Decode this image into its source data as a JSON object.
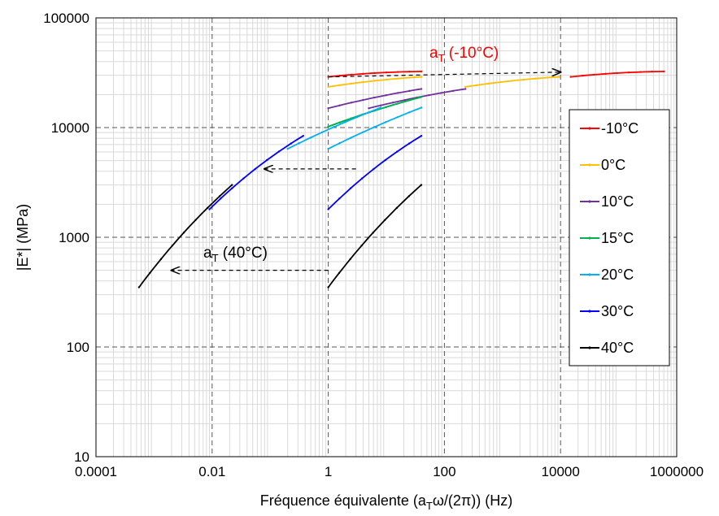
{
  "chart_data": {
    "type": "line",
    "xlabel_parts": {
      "prefix": "Fréquence équivalente (a",
      "sub": "T",
      "mid": "ω/(2π)) (Hz)"
    },
    "ylabel": "|E*| (MPa)",
    "xscale": "log",
    "yscale": "log",
    "xlim": [
      0.0001,
      1000000
    ],
    "ylim": [
      10,
      100000
    ],
    "x_ticks": [
      "0.0001",
      "0.01",
      "1",
      "100",
      "10000",
      "1000000"
    ],
    "y_ticks": [
      "10",
      "100",
      "1000",
      "10000",
      "100000"
    ],
    "grid": true,
    "legend_position": "right",
    "series": [
      {
        "name": "-10°C",
        "color": "#ff0000",
        "measured": [
          [
            1,
            29000
          ],
          [
            40,
            32500
          ]
        ],
        "shifted": [
          [
            15000,
            29000
          ],
          [
            600000,
            32500
          ]
        ]
      },
      {
        "name": "0°C",
        "color": "#ffc000",
        "measured": [
          [
            1,
            23500
          ],
          [
            40,
            29000
          ]
        ],
        "shifted": [
          [
            230,
            23500
          ],
          [
            9500,
            29000
          ]
        ]
      },
      {
        "name": "10°C",
        "color": "#7030a0",
        "measured": [
          [
            1,
            15000
          ],
          [
            40,
            22500
          ]
        ],
        "shifted": [
          [
            5,
            15000
          ],
          [
            230,
            22500
          ]
        ]
      },
      {
        "name": "15°C",
        "color": "#00b050",
        "measured": [
          [
            1,
            10200
          ],
          [
            40,
            19000
          ]
        ],
        "shifted": [
          [
            1,
            10200
          ],
          [
            40,
            19000
          ]
        ]
      },
      {
        "name": "20°C",
        "color": "#00b0f0",
        "measured": [
          [
            1,
            6400
          ],
          [
            40,
            15200
          ]
        ],
        "shifted": [
          [
            0.2,
            6400
          ],
          [
            8,
            15200
          ]
        ]
      },
      {
        "name": "30°C",
        "color": "#0000ff",
        "measured": [
          [
            1,
            1800
          ],
          [
            40,
            8400
          ]
        ],
        "shifted": [
          [
            0.009,
            1800
          ],
          [
            0.37,
            8400
          ]
        ]
      },
      {
        "name": "40°C",
        "color": "#000000",
        "measured": [
          [
            1,
            350
          ],
          [
            40,
            3000
          ]
        ],
        "shifted": [
          [
            0.00055,
            350
          ],
          [
            0.022,
            3000
          ]
        ]
      }
    ],
    "annotations": [
      {
        "base": "a",
        "sub": "T",
        "rest": " (-10°C)",
        "color": "#ff0000",
        "arrow_from": [
          1,
          29000
        ],
        "arrow_to": [
          10000,
          32000
        ]
      },
      {
        "base": "a",
        "sub": "T",
        "rest": " (40°C)",
        "color": "#000000",
        "arrow_from": [
          1,
          500
        ],
        "arrow_to": [
          0.002,
          500
        ]
      },
      {
        "base": "",
        "sub": "",
        "rest": "",
        "color": "#000000",
        "arrow_from": [
          3,
          4200
        ],
        "arrow_to": [
          0.08,
          4200
        ]
      }
    ]
  }
}
